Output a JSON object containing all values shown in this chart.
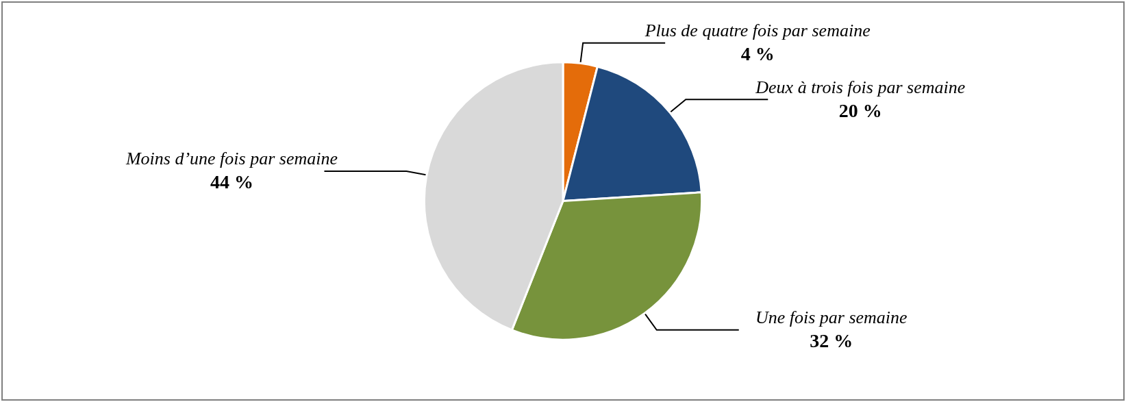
{
  "chart_data": {
    "type": "pie",
    "categories": [
      "Plus de quatre fois par semaine",
      "Deux à trois fois par semaine",
      "Une fois par semaine",
      "Moins d’une fois par semaine"
    ],
    "values": [
      4,
      20,
      32,
      44
    ],
    "colors": [
      "#e46c0a",
      "#1f497d",
      "#77933c",
      "#d9d9d9"
    ],
    "value_labels": [
      "4 %",
      "20 %",
      "32 %",
      "44 %"
    ],
    "legend": false
  }
}
